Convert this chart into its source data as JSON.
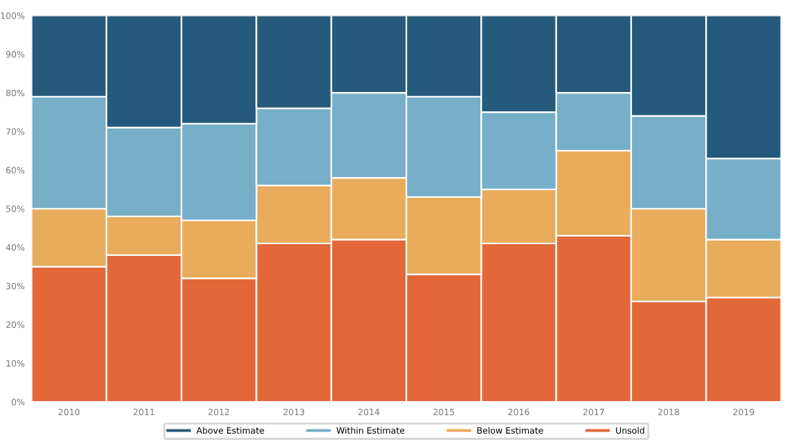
{
  "chart_data": {
    "type": "bar",
    "stacked": true,
    "categories": [
      "2010",
      "2011",
      "2012",
      "2013",
      "2014",
      "2015",
      "2016",
      "2017",
      "2018",
      "2019"
    ],
    "series": [
      {
        "name": "Unsold",
        "color": "#e2683a",
        "values": [
          35,
          38,
          32,
          41,
          42,
          33,
          41,
          43,
          26,
          27
        ]
      },
      {
        "name": "Below Estimate",
        "color": "#e9ac5c",
        "values": [
          15,
          10,
          15,
          15,
          16,
          20,
          14,
          22,
          24,
          15
        ]
      },
      {
        "name": "Within Estimate",
        "color": "#77aec8",
        "values": [
          29,
          23,
          25,
          20,
          22,
          26,
          20,
          15,
          24,
          21
        ]
      },
      {
        "name": "Above Estimate",
        "color": "#265a7c",
        "values": [
          21,
          29,
          28,
          24,
          20,
          21,
          25,
          20,
          26,
          37
        ]
      }
    ],
    "ylim": [
      0,
      100
    ],
    "yticks": [
      {
        "value": 0,
        "label": "0%"
      },
      {
        "value": 10,
        "label": "10%"
      },
      {
        "value": 20,
        "label": "20%"
      },
      {
        "value": 30,
        "label": "30%"
      },
      {
        "value": 40,
        "label": "40%"
      },
      {
        "value": 50,
        "label": "50%"
      },
      {
        "value": 60,
        "label": "60%"
      },
      {
        "value": 70,
        "label": "70%"
      },
      {
        "value": 80,
        "label": "80%"
      },
      {
        "value": 90,
        "label": "90%"
      },
      {
        "value": 100,
        "label": "100%"
      }
    ],
    "legend": "bottom"
  }
}
